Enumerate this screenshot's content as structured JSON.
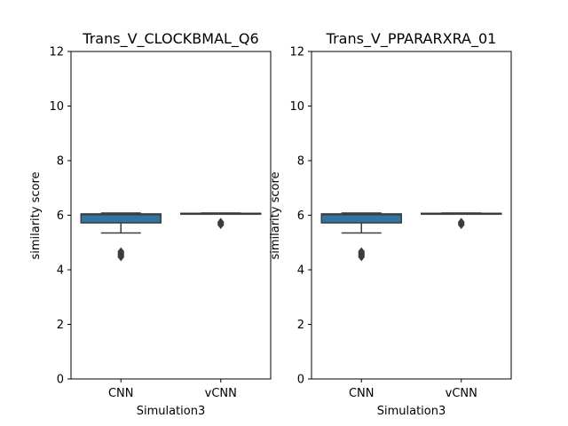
{
  "chart_data": [
    {
      "type": "box",
      "title": "Trans_V_CLOCKBMAL_Q6",
      "xlabel": "Simulation3",
      "ylabel": "similarity score",
      "ylim": [
        0,
        12
      ],
      "yticks": [
        0,
        2,
        4,
        6,
        8,
        10,
        12
      ],
      "categories": [
        "CNN",
        "vCNN"
      ],
      "boxes": [
        {
          "name": "CNN",
          "whisker_low": 5.35,
          "q1": 5.72,
          "median": 6.02,
          "q3": 6.05,
          "whisker_high": 6.08,
          "outliers": [
            4.47,
            4.52,
            4.57,
            4.62,
            4.67
          ],
          "color": "#3274a1"
        },
        {
          "name": "vCNN",
          "whisker_low": 6.05,
          "q1": 6.05,
          "median": 6.06,
          "q3": 6.07,
          "whisker_high": 6.08,
          "outliers": [
            5.65,
            5.7,
            5.75
          ],
          "color": "#e1812c"
        }
      ],
      "grid": false
    },
    {
      "type": "box",
      "title": "Trans_V_PPARARXRA_01",
      "xlabel": "Simulation3",
      "ylabel": "similarity score",
      "ylim": [
        0,
        12
      ],
      "yticks": [
        0,
        2,
        4,
        6,
        8,
        10,
        12
      ],
      "categories": [
        "CNN",
        "vCNN"
      ],
      "boxes": [
        {
          "name": "CNN",
          "whisker_low": 5.35,
          "q1": 5.72,
          "median": 6.02,
          "q3": 6.05,
          "whisker_high": 6.08,
          "outliers": [
            4.47,
            4.52,
            4.57,
            4.62,
            4.67
          ],
          "color": "#3274a1"
        },
        {
          "name": "vCNN",
          "whisker_low": 6.05,
          "q1": 6.05,
          "median": 6.06,
          "q3": 6.07,
          "whisker_high": 6.08,
          "outliers": [
            5.65,
            5.7,
            5.75
          ],
          "color": "#e1812c"
        }
      ],
      "grid": false
    }
  ]
}
